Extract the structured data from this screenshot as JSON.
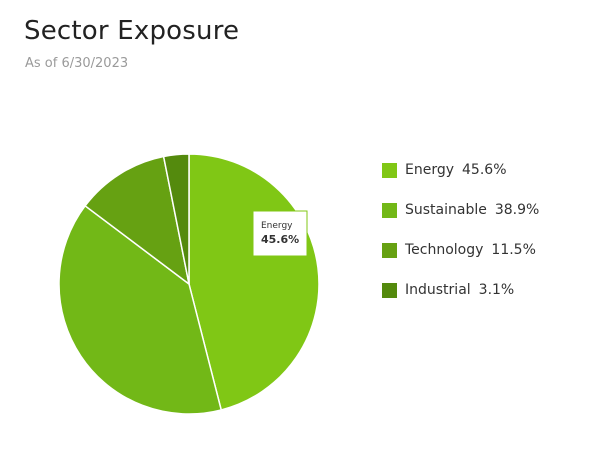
{
  "header": {
    "title": "Sector Exposure",
    "subtitle": "As of 6/30/2023"
  },
  "chart_data": {
    "type": "pie",
    "categories": [
      "Energy",
      "Sustainable",
      "Technology",
      "Industrial"
    ],
    "values": [
      45.6,
      38.9,
      11.5,
      3.1
    ],
    "value_labels": [
      "45.6%",
      "38.9%",
      "11.5%",
      "3.1%"
    ],
    "colors": [
      "#80c715",
      "#72b817",
      "#66a112",
      "#548a0d"
    ],
    "legend_position": "right",
    "tooltip": {
      "category": "Energy",
      "value": "45.6%"
    }
  }
}
